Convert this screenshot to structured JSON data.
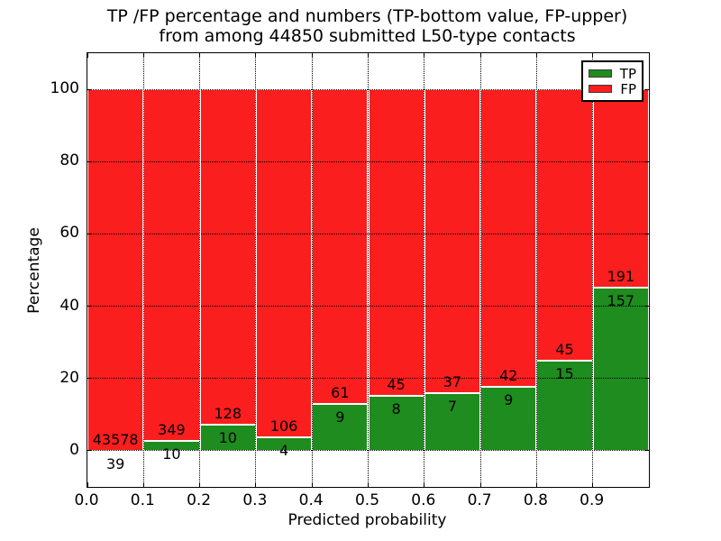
{
  "chart_data": {
    "type": "bar",
    "stacked": true,
    "title_line1": "TP /FP percentage and numbers (TP-bottom value, FP-upper)",
    "title_line2": "from among 44850 submitted L50-type contacts",
    "total_contacts": 44850,
    "xlabel": "Predicted probability",
    "ylabel": "Percentage",
    "x_ticks": [
      "0.0",
      "0.1",
      "0.2",
      "0.3",
      "0.4",
      "0.5",
      "0.6",
      "0.7",
      "0.8",
      "0.9"
    ],
    "y_ticks": [
      0,
      20,
      40,
      60,
      80,
      100
    ],
    "xlim": [
      0.0,
      1.0
    ],
    "ylim": [
      -10,
      110
    ],
    "grid": "dotted",
    "legend_position": "upper right",
    "legend": [
      {
        "label": "TP",
        "color": "#1e8c1e"
      },
      {
        "label": "FP",
        "color": "#fa1e1e"
      }
    ],
    "bars": [
      {
        "bin": "0.0-0.1",
        "tp": 39,
        "fp": 43578
      },
      {
        "bin": "0.1-0.2",
        "tp": 10,
        "fp": 349
      },
      {
        "bin": "0.2-0.3",
        "tp": 10,
        "fp": 128
      },
      {
        "bin": "0.3-0.4",
        "tp": 4,
        "fp": 106
      },
      {
        "bin": "0.4-0.5",
        "tp": 9,
        "fp": 61
      },
      {
        "bin": "0.5-0.6",
        "tp": 8,
        "fp": 45
      },
      {
        "bin": "0.6-0.7",
        "tp": 7,
        "fp": 37
      },
      {
        "bin": "0.7-0.8",
        "tp": 9,
        "fp": 42
      },
      {
        "bin": "0.8-0.9",
        "tp": 15,
        "fp": 45
      },
      {
        "bin": "0.9-1.0",
        "tp": 157,
        "fp": 191
      }
    ]
  }
}
